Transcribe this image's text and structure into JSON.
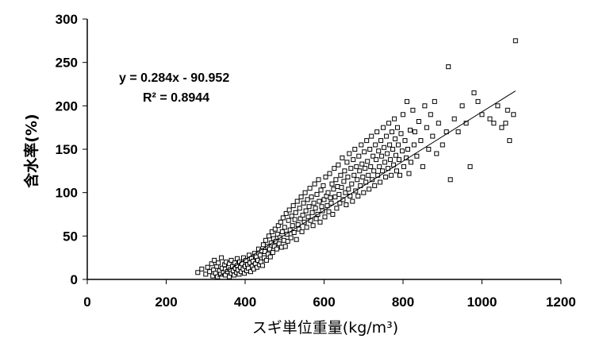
{
  "chart_data": {
    "type": "scatter",
    "title": "",
    "xlabel": "スギ単位重量(kg/m³)",
    "ylabel": "含水率(%)",
    "xlim": [
      0,
      1200
    ],
    "ylim": [
      0,
      300
    ],
    "xticks": [
      "0",
      "200",
      "400",
      "600",
      "800",
      "1000",
      "1200"
    ],
    "yticks": [
      "0",
      "50",
      "100",
      "150",
      "200",
      "250",
      "300"
    ],
    "grid": false,
    "marker": "open-square",
    "marker_color": "#000000",
    "trendline": {
      "type": "linear",
      "slope": 0.284,
      "intercept": -90.952,
      "x_range": [
        330,
        1085
      ],
      "equation_label": "y = 0.284x - 90.952",
      "r2_label": "R² = 0.8944"
    },
    "points": [
      [
        280,
        8
      ],
      [
        290,
        12
      ],
      [
        300,
        6
      ],
      [
        305,
        14
      ],
      [
        310,
        9
      ],
      [
        315,
        18
      ],
      [
        318,
        4
      ],
      [
        320,
        11
      ],
      [
        322,
        22
      ],
      [
        325,
        7
      ],
      [
        328,
        15
      ],
      [
        330,
        3
      ],
      [
        332,
        19
      ],
      [
        335,
        10
      ],
      [
        338,
        6
      ],
      [
        340,
        25
      ],
      [
        342,
        13
      ],
      [
        345,
        8
      ],
      [
        348,
        17
      ],
      [
        350,
        5
      ],
      [
        350,
        12
      ],
      [
        352,
        20
      ],
      [
        355,
        9
      ],
      [
        358,
        14
      ],
      [
        360,
        3
      ],
      [
        360,
        18
      ],
      [
        362,
        11
      ],
      [
        365,
        7
      ],
      [
        365,
        22
      ],
      [
        368,
        15
      ],
      [
        370,
        10
      ],
      [
        372,
        5
      ],
      [
        374,
        19
      ],
      [
        375,
        13
      ],
      [
        378,
        8
      ],
      [
        380,
        16
      ],
      [
        380,
        24
      ],
      [
        382,
        11
      ],
      [
        385,
        6
      ],
      [
        386,
        20
      ],
      [
        388,
        14
      ],
      [
        390,
        9
      ],
      [
        392,
        18
      ],
      [
        395,
        12
      ],
      [
        396,
        25
      ],
      [
        398,
        7
      ],
      [
        400,
        15
      ],
      [
        402,
        22
      ],
      [
        404,
        10
      ],
      [
        406,
        17
      ],
      [
        408,
        13
      ],
      [
        410,
        28
      ],
      [
        412,
        19
      ],
      [
        414,
        9
      ],
      [
        416,
        24
      ],
      [
        418,
        15
      ],
      [
        420,
        21
      ],
      [
        422,
        12
      ],
      [
        424,
        30
      ],
      [
        426,
        18
      ],
      [
        428,
        26
      ],
      [
        430,
        14
      ],
      [
        432,
        22
      ],
      [
        434,
        35
      ],
      [
        436,
        17
      ],
      [
        438,
        28
      ],
      [
        440,
        20
      ],
      [
        442,
        33
      ],
      [
        444,
        16
      ],
      [
        446,
        40
      ],
      [
        448,
        25
      ],
      [
        450,
        32
      ],
      [
        452,
        45
      ],
      [
        454,
        22
      ],
      [
        456,
        38
      ],
      [
        458,
        29
      ],
      [
        460,
        50
      ],
      [
        462,
        35
      ],
      [
        464,
        26
      ],
      [
        466,
        42
      ],
      [
        468,
        55
      ],
      [
        470,
        31
      ],
      [
        472,
        47
      ],
      [
        474,
        38
      ],
      [
        476,
        58
      ],
      [
        478,
        44
      ],
      [
        480,
        35
      ],
      [
        482,
        52
      ],
      [
        484,
        62
      ],
      [
        486,
        41
      ],
      [
        488,
        48
      ],
      [
        490,
        66
      ],
      [
        492,
        37
      ],
      [
        494,
        55
      ],
      [
        496,
        71
      ],
      [
        498,
        45
      ],
      [
        500,
        60
      ],
      [
        502,
        38
      ],
      [
        504,
        76
      ],
      [
        506,
        52
      ],
      [
        508,
        44
      ],
      [
        510,
        68
      ],
      [
        512,
        80
      ],
      [
        514,
        57
      ],
      [
        516,
        48
      ],
      [
        518,
        73
      ],
      [
        520,
        62
      ],
      [
        522,
        85
      ],
      [
        524,
        54
      ],
      [
        526,
        69
      ],
      [
        528,
        77
      ],
      [
        530,
        46
      ],
      [
        532,
        90
      ],
      [
        534,
        63
      ],
      [
        536,
        58
      ],
      [
        538,
        82
      ],
      [
        540,
        70
      ],
      [
        542,
        95
      ],
      [
        544,
        55
      ],
      [
        546,
        74
      ],
      [
        548,
        88
      ],
      [
        550,
        66
      ],
      [
        552,
        100
      ],
      [
        554,
        79
      ],
      [
        556,
        60
      ],
      [
        558,
        92
      ],
      [
        560,
        72
      ],
      [
        562,
        84
      ],
      [
        564,
        105
      ],
      [
        566,
        68
      ],
      [
        568,
        95
      ],
      [
        570,
        77
      ],
      [
        572,
        62
      ],
      [
        574,
        88
      ],
      [
        576,
        110
      ],
      [
        578,
        82
      ],
      [
        580,
        70
      ],
      [
        582,
        98
      ],
      [
        584,
        75
      ],
      [
        586,
        115
      ],
      [
        588,
        90
      ],
      [
        590,
        66
      ],
      [
        592,
        103
      ],
      [
        594,
        84
      ],
      [
        596,
        79
      ],
      [
        598,
        108
      ],
      [
        600,
        92
      ],
      [
        602,
        72
      ],
      [
        604,
        118
      ],
      [
        606,
        96
      ],
      [
        608,
        85
      ],
      [
        610,
        100
      ],
      [
        612,
        78
      ],
      [
        614,
        122
      ],
      [
        616,
        94
      ],
      [
        618,
        88
      ],
      [
        620,
        110
      ],
      [
        622,
        75
      ],
      [
        624,
        104
      ],
      [
        626,
        128
      ],
      [
        628,
        95
      ],
      [
        630,
        115
      ],
      [
        632,
        82
      ],
      [
        634,
        107
      ],
      [
        636,
        132
      ],
      [
        638,
        98
      ],
      [
        640,
        88
      ],
      [
        642,
        120
      ],
      [
        644,
        106
      ],
      [
        646,
        140
      ],
      [
        648,
        92
      ],
      [
        650,
        113
      ],
      [
        652,
        125
      ],
      [
        654,
        100
      ],
      [
        656,
        86
      ],
      [
        658,
        135
      ],
      [
        660,
        118
      ],
      [
        662,
        104
      ],
      [
        664,
        145
      ],
      [
        666,
        96
      ],
      [
        668,
        128
      ],
      [
        670,
        110
      ],
      [
        672,
        90
      ],
      [
        674,
        138
      ],
      [
        676,
        120
      ],
      [
        678,
        150
      ],
      [
        680,
        102
      ],
      [
        682,
        130
      ],
      [
        684,
        115
      ],
      [
        686,
        96
      ],
      [
        688,
        142
      ],
      [
        690,
        125
      ],
      [
        692,
        108
      ],
      [
        694,
        155
      ],
      [
        696,
        133
      ],
      [
        698,
        118
      ],
      [
        700,
        100
      ],
      [
        702,
        147
      ],
      [
        704,
        128
      ],
      [
        706,
        112
      ],
      [
        708,
        160
      ],
      [
        710,
        136
      ],
      [
        712,
        120
      ],
      [
        714,
        104
      ],
      [
        716,
        150
      ],
      [
        718,
        130
      ],
      [
        720,
        165
      ],
      [
        722,
        115
      ],
      [
        724,
        142
      ],
      [
        726,
        125
      ],
      [
        728,
        108
      ],
      [
        730,
        155
      ],
      [
        732,
        138
      ],
      [
        734,
        170
      ],
      [
        736,
        120
      ],
      [
        738,
        148
      ],
      [
        740,
        130
      ],
      [
        742,
        112
      ],
      [
        744,
        160
      ],
      [
        746,
        142
      ],
      [
        748,
        125
      ],
      [
        750,
        175
      ],
      [
        752,
        152
      ],
      [
        754,
        135
      ],
      [
        756,
        118
      ],
      [
        758,
        165
      ],
      [
        760,
        145
      ],
      [
        762,
        128
      ],
      [
        764,
        180
      ],
      [
        766,
        155
      ],
      [
        768,
        138
      ],
      [
        770,
        120
      ],
      [
        772,
        170
      ],
      [
        774,
        150
      ],
      [
        776,
        132
      ],
      [
        778,
        185
      ],
      [
        780,
        162
      ],
      [
        782,
        143
      ],
      [
        784,
        125
      ],
      [
        786,
        175
      ],
      [
        788,
        155
      ],
      [
        790,
        138
      ],
      [
        792,
        120
      ],
      [
        795,
        168
      ],
      [
        798,
        148
      ],
      [
        800,
        190
      ],
      [
        802,
        130
      ],
      [
        805,
        160
      ],
      [
        808,
        140
      ],
      [
        810,
        205
      ],
      [
        812,
        150
      ],
      [
        815,
        122
      ],
      [
        818,
        172
      ],
      [
        820,
        135
      ],
      [
        825,
        195
      ],
      [
        828,
        155
      ],
      [
        830,
        170
      ],
      [
        835,
        142
      ],
      [
        840,
        182
      ],
      [
        845,
        160
      ],
      [
        850,
        130
      ],
      [
        855,
        200
      ],
      [
        860,
        175
      ],
      [
        865,
        150
      ],
      [
        870,
        190
      ],
      [
        875,
        165
      ],
      [
        880,
        205
      ],
      [
        885,
        145
      ],
      [
        890,
        180
      ],
      [
        900,
        155
      ],
      [
        910,
        170
      ],
      [
        915,
        245
      ],
      [
        920,
        115
      ],
      [
        930,
        185
      ],
      [
        940,
        170
      ],
      [
        950,
        200
      ],
      [
        960,
        180
      ],
      [
        970,
        130
      ],
      [
        980,
        215
      ],
      [
        990,
        205
      ],
      [
        1000,
        190
      ],
      [
        1020,
        185
      ],
      [
        1030,
        180
      ],
      [
        1040,
        200
      ],
      [
        1050,
        175
      ],
      [
        1060,
        180
      ],
      [
        1070,
        160
      ],
      [
        1085,
        275
      ],
      [
        1080,
        190
      ],
      [
        1065,
        195
      ]
    ]
  }
}
